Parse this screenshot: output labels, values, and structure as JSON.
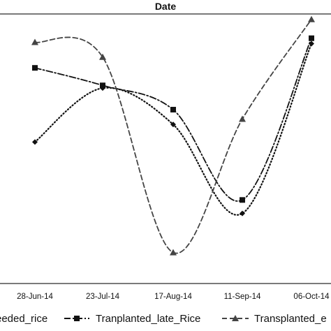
{
  "chart_data": {
    "type": "line",
    "title": "Date",
    "categories": [
      "28-Jun-14",
      "23-Jul-14",
      "17-Aug-14",
      "11-Sep-14",
      "06-Oct-14"
    ],
    "ylim": [
      0,
      100
    ],
    "grid": false,
    "legend_position": "bottom",
    "series": [
      {
        "name": "Direct_seeded_rice",
        "legend_label": "eeded_rice",
        "marker": "diamond",
        "dash": "dotted",
        "color": "#111111",
        "values": [
          52.5,
          72.5,
          59.0,
          26.0,
          89.0
        ]
      },
      {
        "name": "Tranplanted_late_Rice",
        "legend_label": "Tranplanted_late_Rice",
        "marker": "square",
        "dash": "dashdot",
        "color": "#111111",
        "values": [
          80.0,
          73.5,
          64.5,
          31.0,
          91.0
        ]
      },
      {
        "name": "Transplanted_early_Rice",
        "legend_label": "Transplanted_e",
        "marker": "triangle",
        "dash": "dashed",
        "color": "#444444",
        "values": [
          89.5,
          84.0,
          11.5,
          61.0,
          98.0
        ]
      }
    ]
  }
}
